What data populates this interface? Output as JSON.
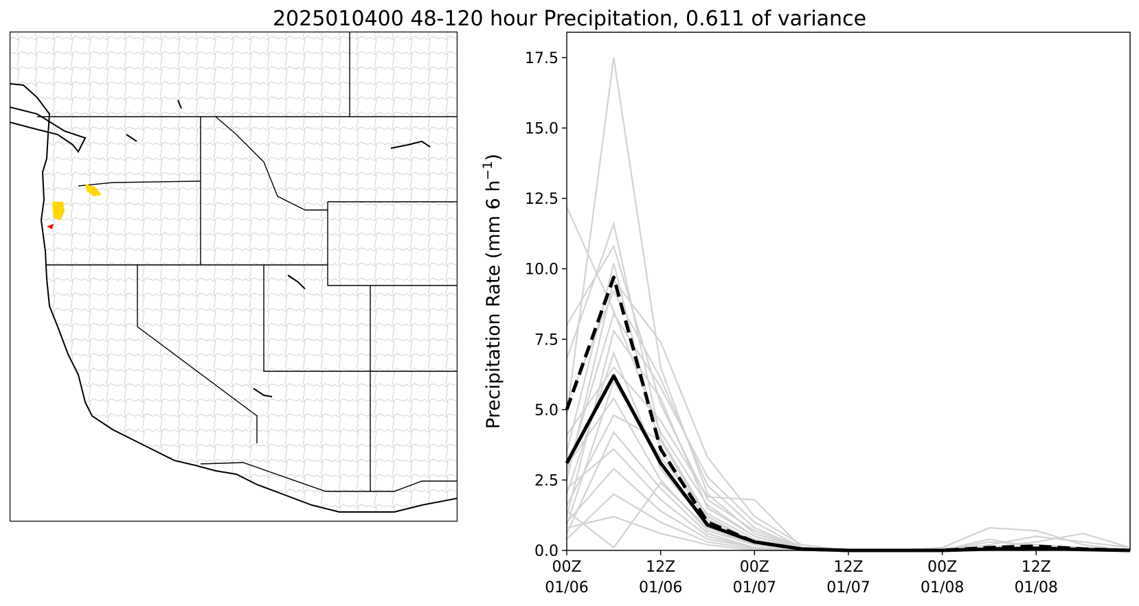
{
  "figure": {
    "title": "2025010400 48-120 hour Precipitation, 0.611 of variance"
  },
  "map_panel": {
    "description_icon": "western-us-watershed-map",
    "highlight_colors": {
      "high": "#ffd700",
      "extreme": "#ff0000"
    },
    "boundary_color": "#000000",
    "watershed_color": "#c8c8c8"
  },
  "chart_data": {
    "type": "line",
    "title": "",
    "xlabel": "",
    "ylabel": "Precipitation Rate (mm 6 h",
    "ylabel_superscript": "−1",
    "ylabel_suffix": ")",
    "ylim": [
      0,
      18.4
    ],
    "xlim": [
      0,
      36
    ],
    "yticks": [
      0.0,
      2.5,
      5.0,
      7.5,
      10.0,
      12.5,
      15.0,
      17.5
    ],
    "ytick_labels": [
      "0.0",
      "2.5",
      "5.0",
      "7.5",
      "10.0",
      "12.5",
      "15.0",
      "17.5"
    ],
    "xticks": [
      {
        "value": 0,
        "line1": "00Z",
        "line2": "01/06"
      },
      {
        "value": 6,
        "line1": "12Z",
        "line2": "01/06"
      },
      {
        "value": 12,
        "line1": "00Z",
        "line2": "01/07"
      },
      {
        "value": 18,
        "line1": "12Z",
        "line2": "01/07"
      },
      {
        "value": 24,
        "line1": "00Z",
        "line2": "01/08"
      },
      {
        "value": 30,
        "line1": "12Z",
        "line2": "01/08"
      }
    ],
    "x": [
      0,
      3,
      6,
      9,
      12,
      15,
      18,
      21,
      24,
      27,
      30,
      33,
      36
    ],
    "members_color": "#d3d3d3",
    "members": [
      [
        12.2,
        8.5,
        4.2,
        1.6,
        0.5,
        0.08,
        0.02,
        0.0,
        0.0,
        0.3,
        0.2,
        0.0,
        0.0
      ],
      [
        4.8,
        17.5,
        6.5,
        2.0,
        0.6,
        0.1,
        0.0,
        0.0,
        0.1,
        0.8,
        0.7,
        0.2,
        0.0
      ],
      [
        6.8,
        11.6,
        4.0,
        1.2,
        0.3,
        0.05,
        0.0,
        0.0,
        0.0,
        0.1,
        0.3,
        0.6,
        0.1
      ],
      [
        8.0,
        10.8,
        5.2,
        1.8,
        0.7,
        0.1,
        0.0,
        0.0,
        0.0,
        0.2,
        0.5,
        0.3,
        0.1
      ],
      [
        3.5,
        10.2,
        3.6,
        1.0,
        0.3,
        0.05,
        0.0,
        0.0,
        0.0,
        0.4,
        0.1,
        0.0,
        0.0
      ],
      [
        2.5,
        9.6,
        7.4,
        3.3,
        1.2,
        0.2,
        0.0,
        0.0,
        0.0,
        0.1,
        0.0,
        0.0,
        0.0
      ],
      [
        5.2,
        9.2,
        6.1,
        2.3,
        0.8,
        0.1,
        0.0,
        0.0,
        0.0,
        0.0,
        0.2,
        0.1,
        0.0
      ],
      [
        1.2,
        7.8,
        5.4,
        1.5,
        0.5,
        0.05,
        0.0,
        0.0,
        0.1,
        0.0,
        0.0,
        0.0,
        0.0
      ],
      [
        2.0,
        7.0,
        2.9,
        0.9,
        0.2,
        0.02,
        0.0,
        0.0,
        0.0,
        0.0,
        0.1,
        0.0,
        0.0
      ],
      [
        4.1,
        6.5,
        4.6,
        1.9,
        1.8,
        0.1,
        0.0,
        0.0,
        0.0,
        0.0,
        0.0,
        0.0,
        0.0
      ],
      [
        0.9,
        6.0,
        3.3,
        1.3,
        0.4,
        0.03,
        0.0,
        0.0,
        0.0,
        0.0,
        0.0,
        0.0,
        0.0
      ],
      [
        3.0,
        5.4,
        2.5,
        0.7,
        0.2,
        0.0,
        0.0,
        0.0,
        0.0,
        0.0,
        0.0,
        0.0,
        0.0
      ],
      [
        1.6,
        4.8,
        3.9,
        1.1,
        0.3,
        0.02,
        0.0,
        0.0,
        0.0,
        0.0,
        0.0,
        0.0,
        0.0
      ],
      [
        0.6,
        4.2,
        2.2,
        0.6,
        0.1,
        0.0,
        0.0,
        0.0,
        0.0,
        0.0,
        0.0,
        0.0,
        0.0
      ],
      [
        2.2,
        3.6,
        1.8,
        0.5,
        0.1,
        0.0,
        0.0,
        0.0,
        0.0,
        0.0,
        0.0,
        0.0,
        0.0
      ],
      [
        1.0,
        2.9,
        1.4,
        0.4,
        0.1,
        0.0,
        0.0,
        0.0,
        0.0,
        0.0,
        0.0,
        0.0,
        0.0
      ],
      [
        0.4,
        2.0,
        1.0,
        0.3,
        0.05,
        0.0,
        0.0,
        0.0,
        0.0,
        0.0,
        0.0,
        0.0,
        0.0
      ],
      [
        0.8,
        1.2,
        0.6,
        0.2,
        0.0,
        0.0,
        0.0,
        0.0,
        0.0,
        0.0,
        0.0,
        0.0,
        0.0
      ],
      [
        1.4,
        0.1,
        2.4,
        0.8,
        0.2,
        0.0,
        0.0,
        0.0,
        0.0,
        0.0,
        0.0,
        0.0,
        0.0
      ],
      [
        2.8,
        8.4,
        5.8,
        2.6,
        1.0,
        0.1,
        0.0,
        0.0,
        0.0,
        0.0,
        0.0,
        0.0,
        0.0
      ]
    ],
    "series": [
      {
        "values": [
          3.1,
          6.2,
          3.1,
          0.9,
          0.3,
          0.05,
          0.0,
          0.0,
          0.0,
          0.05,
          0.08,
          0.03,
          0.0
        ],
        "style": "solid",
        "color": "#000000"
      },
      {
        "values": [
          5.0,
          9.7,
          3.6,
          1.0,
          0.3,
          0.05,
          0.0,
          0.0,
          0.0,
          0.1,
          0.15,
          0.05,
          0.0
        ],
        "style": "dashed",
        "color": "#000000"
      }
    ],
    "grid": false
  }
}
